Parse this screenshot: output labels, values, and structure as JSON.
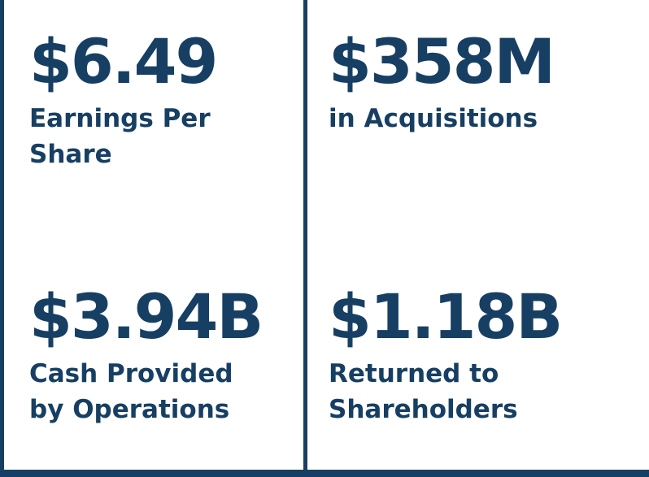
{
  "stats": {
    "eps": {
      "value": "$6.49",
      "label_line1": "Earnings Per",
      "label_line2": "Share"
    },
    "acquisitions": {
      "value": "$358M",
      "label_line1": "in Acquisitions"
    },
    "cash": {
      "value": "$3.94B",
      "label_line1": "Cash Provided",
      "label_line2": "by Operations"
    },
    "returned": {
      "value": "$1.18B",
      "label_line1": "Returned to",
      "label_line2": "Shareholders"
    }
  },
  "colors": {
    "text": "#173f63",
    "rules": "#173f63",
    "background": "#ffffff"
  }
}
